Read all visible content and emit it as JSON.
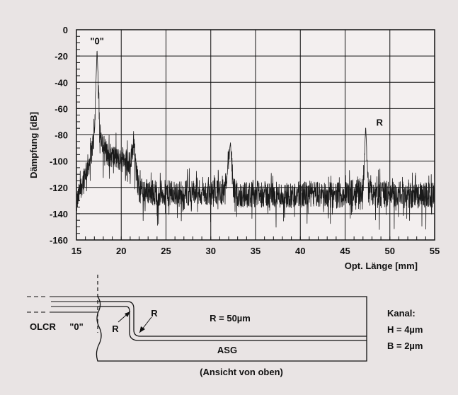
{
  "colors": {
    "background": "#e9e4e4",
    "plot_background": "#f3efef",
    "ink": "#111111"
  },
  "chart_data": {
    "type": "line",
    "title": "",
    "xlabel": "Opt. Länge [mm]",
    "ylabel": "Dämpfung [dB]",
    "xlim": [
      15,
      55
    ],
    "ylim": [
      -160,
      0
    ],
    "xticks": [
      "15",
      "20",
      "25",
      "30",
      "35",
      "40",
      "45",
      "50",
      "55"
    ],
    "yticks": [
      "0",
      "-20",
      "-40",
      "-60",
      "-80",
      "-100",
      "-120",
      "-140",
      "-160"
    ],
    "grid": true,
    "annotations": [
      {
        "text": "\"0\"",
        "x": 17.3,
        "y": -12
      },
      {
        "text": "R",
        "x": 47.9,
        "y": -74
      }
    ],
    "series": [
      {
        "x": [
          15,
          15.5,
          16,
          16.5,
          17,
          17.3,
          17.6,
          18,
          18.5,
          19,
          19.5,
          20,
          20.5,
          21,
          21.4,
          21.7,
          22,
          24,
          26,
          28,
          30,
          31.5,
          32.2,
          32.5,
          33,
          35,
          38,
          41,
          44,
          46,
          47,
          47.3,
          47.6,
          48,
          50,
          52,
          55
        ],
        "y": [
          -133,
          -120,
          -108,
          -100,
          -80,
          -14,
          -75,
          -88,
          -95,
          -96,
          -98,
          -100,
          -98,
          -102,
          -84,
          -110,
          -122,
          -124,
          -125,
          -124,
          -125,
          -123,
          -86,
          -122,
          -126,
          -125,
          -126,
          -125,
          -126,
          -124,
          -122,
          -73,
          -122,
          -125,
          -125,
          -126,
          -126
        ]
      }
    ]
  },
  "diagram": {
    "labels": {
      "olcr": "OLCR",
      "zero": "\"0\"",
      "r_left": "R",
      "r_right": "R",
      "radius": "R = 50µm",
      "asg": "ASG",
      "kanal": "Kanal:",
      "h": "H = 4µm",
      "b": "B = 2µm",
      "caption": "(Ansicht von oben)"
    }
  }
}
